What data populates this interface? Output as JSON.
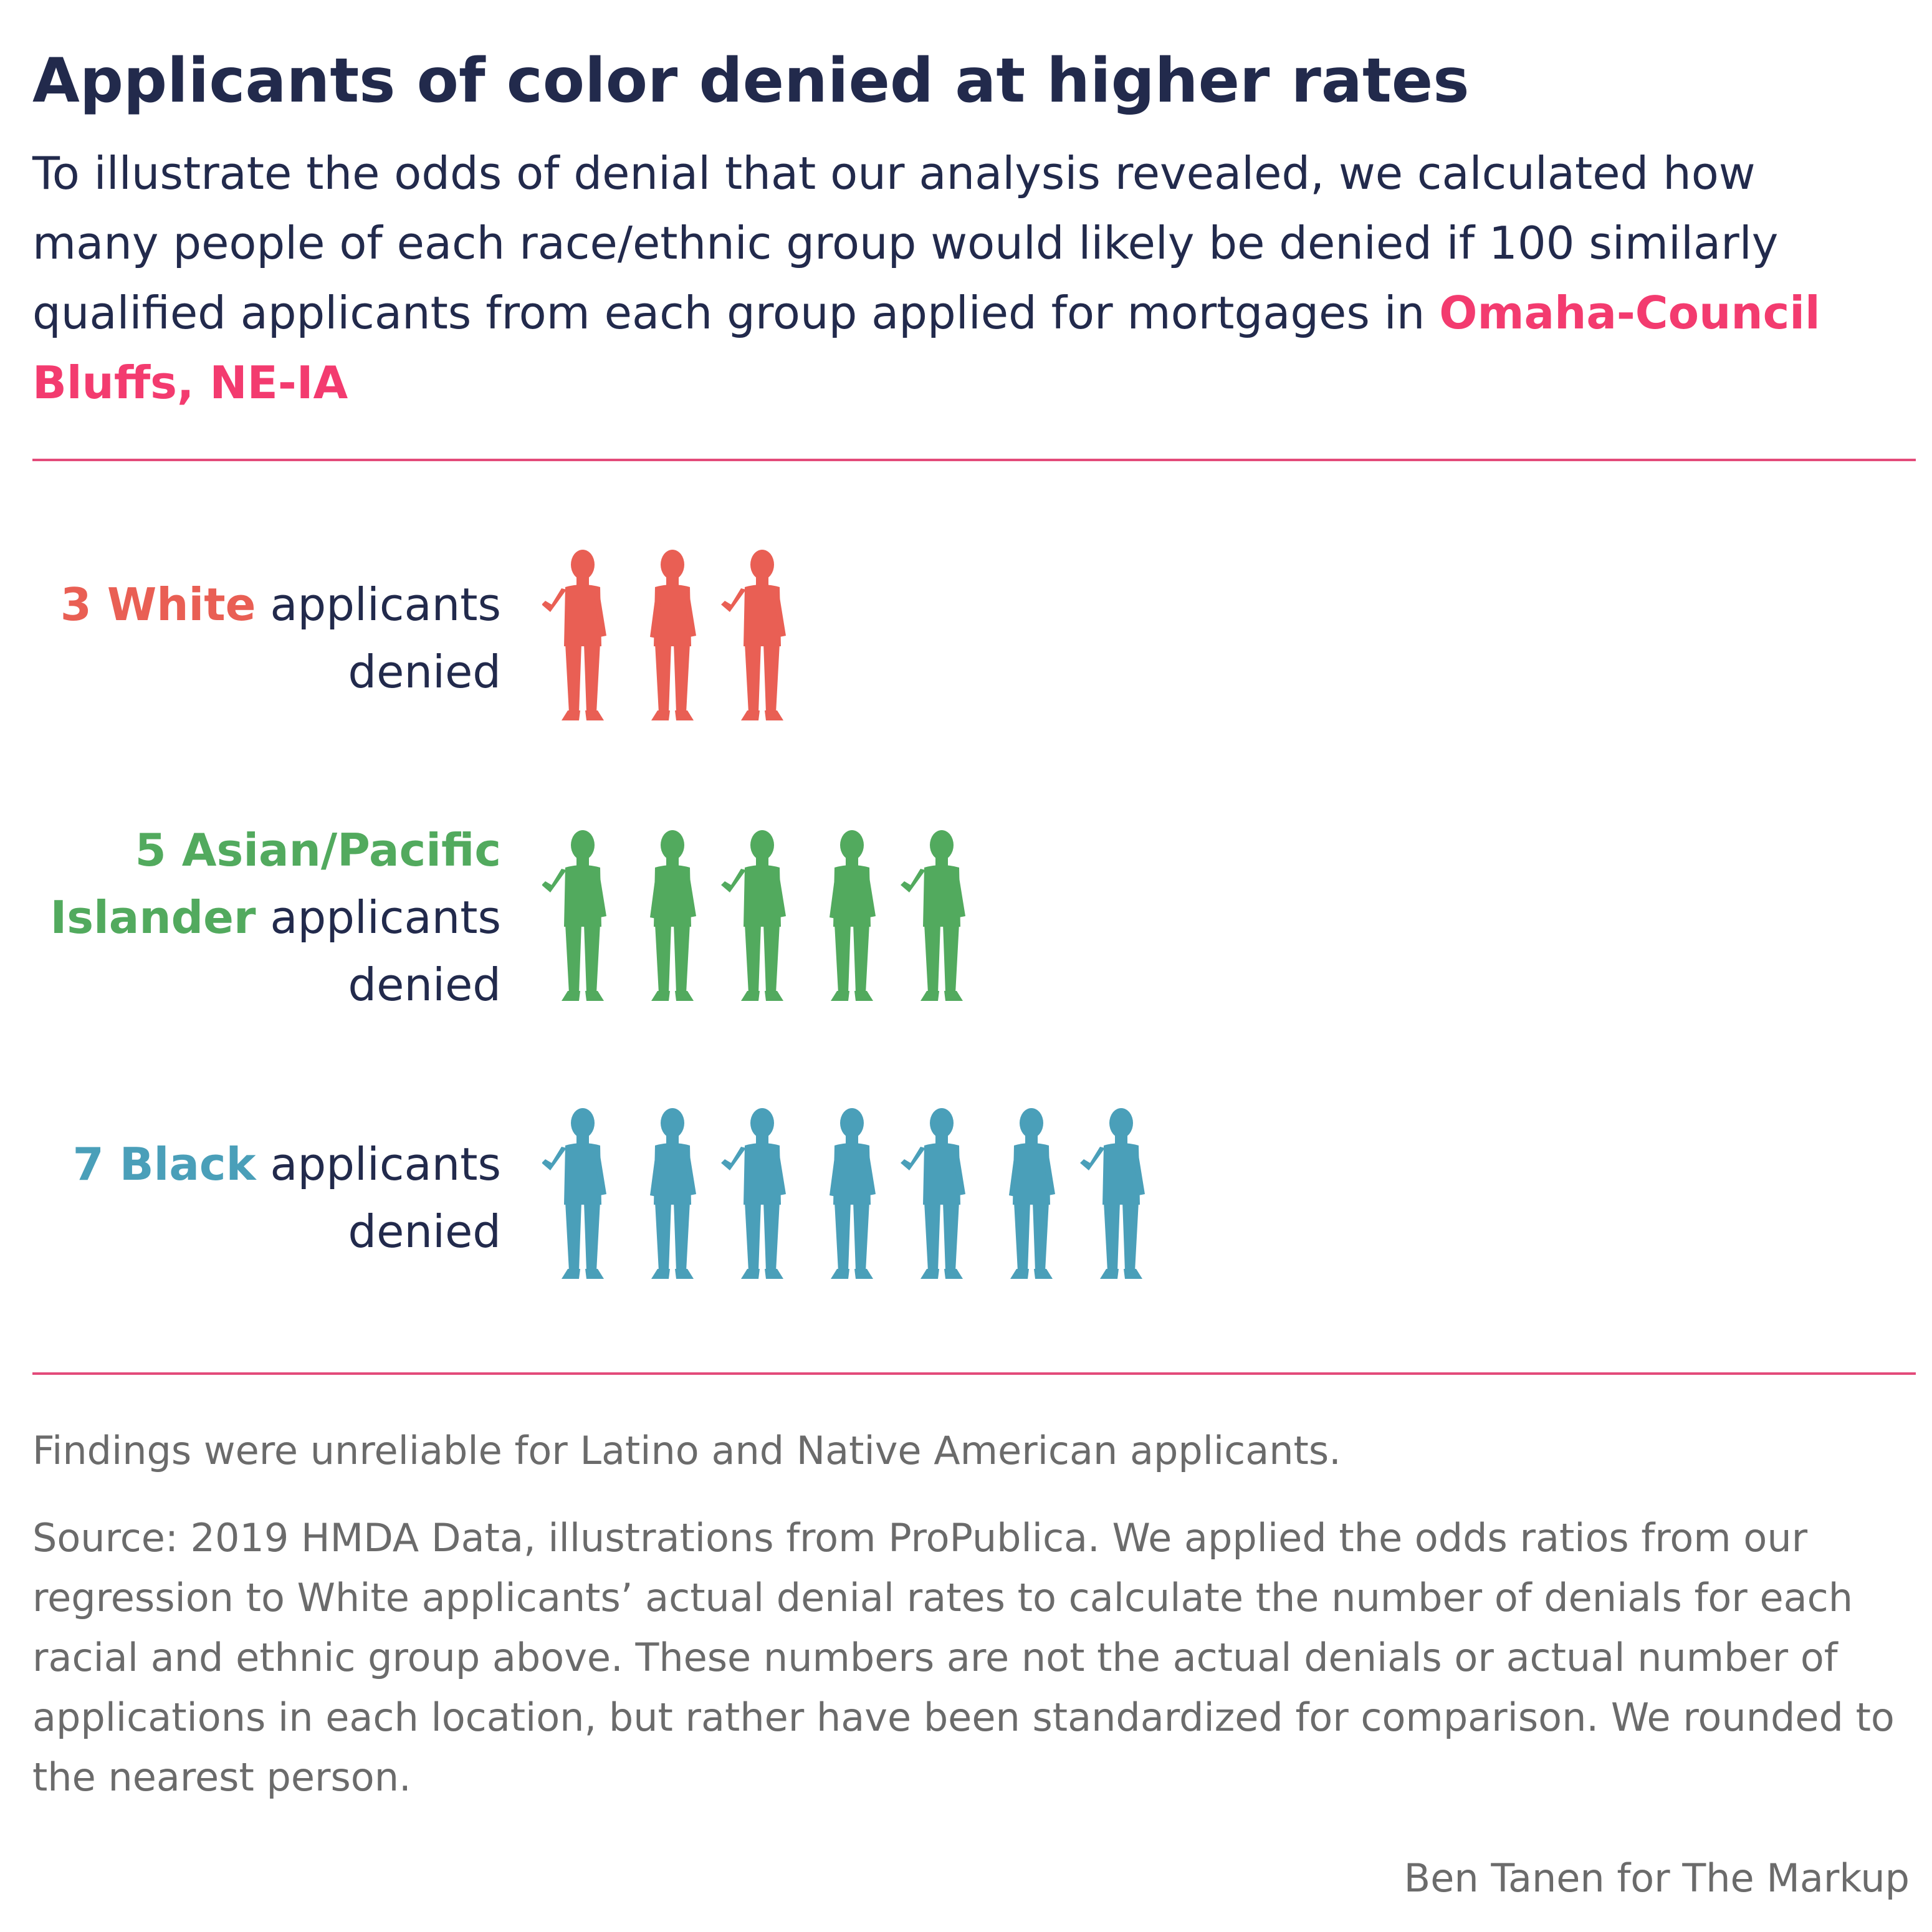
{
  "title": "Applicants of color denied at higher rates",
  "subtitle": {
    "text": "To illustrate the odds of denial that our analysis revealed, we calculated how many people of each race/ethnic group would likely be denied if 100 similarly qualified applicants from each group applied for mortgages in ",
    "place": "Omaha-Council Bluffs, NE-IA"
  },
  "chart_data": {
    "type": "pictograph",
    "unit": "applicants denied per 100 similarly qualified applicants",
    "rows": [
      {
        "count_label": "3",
        "group": "White",
        "suffix": " applicants denied",
        "value": 3,
        "color": "#e95f54"
      },
      {
        "count_label": "5",
        "group": "Asian/Pacific Islander",
        "suffix": " applicants denied",
        "value": 5,
        "color": "#52aa5e"
      },
      {
        "count_label": "7",
        "group": "Black",
        "suffix": " applicants denied",
        "value": 7,
        "color": "#4a9fb9"
      }
    ]
  },
  "footnote": "Findings were unreliable for Latino and Native American applicants.",
  "source": "Source: 2019 HMDA Data, illustrations from ProPublica. We applied the odds ratios from our regression to White applicants’ actual denial rates to calculate the number of denials for each racial and ethnic group above. These numbers are not the actual denials or actual number of applications in each location, but rather have been standardized for comparison. We rounded to the nearest person.",
  "credit": "Ben Tanen for The Markup",
  "colors": {
    "title": "#222a4c",
    "accent": "#f33b6f",
    "rule": "#e34b7a",
    "muted": "#6b6b6b"
  }
}
